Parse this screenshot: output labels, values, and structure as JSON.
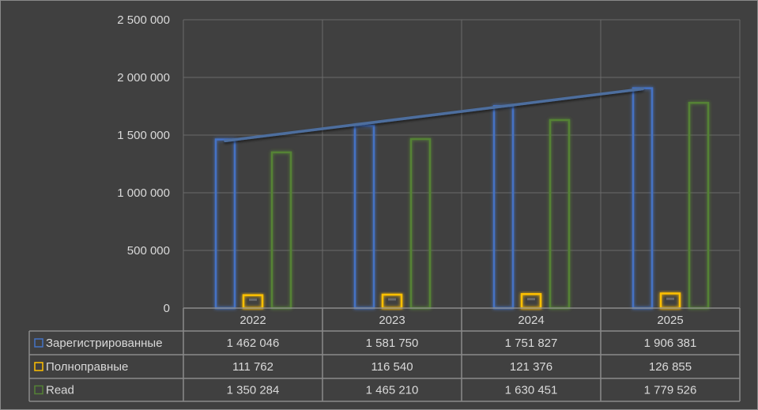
{
  "chart_data": {
    "type": "bar",
    "title": "",
    "xlabel": "",
    "ylabel": "",
    "categories": [
      "2022",
      "2023",
      "2024",
      "2025"
    ],
    "ylim": [
      0,
      2500000
    ],
    "y_ticks": [
      0,
      500000,
      1000000,
      1500000,
      2000000,
      2500000
    ],
    "y_tick_labels": [
      "0",
      "500 000",
      "1 000 000",
      "1 500 000",
      "2 000 000",
      "2 500 000"
    ],
    "grid": true,
    "legend": "data-table",
    "trendline": {
      "series": "Зарегистрированные",
      "type": "linear"
    },
    "series": [
      {
        "name": "Зарегистрированные",
        "color": "#4472c4",
        "values": [
          1462046,
          1581750,
          1751827,
          1906381
        ],
        "labels": [
          "1 462 046",
          "1 581 750",
          "1 751 827",
          "1 906 381"
        ]
      },
      {
        "name": "Полноправные",
        "color": "#ffc000",
        "values": [
          111762,
          116540,
          121376,
          126855
        ],
        "labels": [
          "111 762",
          "116 540",
          "121 376",
          "126 855"
        ]
      },
      {
        "name": "Read",
        "color": "#548235",
        "values": [
          1350284,
          1465210,
          1630451,
          1779526
        ],
        "labels": [
          "1 350 284",
          "1 465 210",
          "1 630 451",
          "1 779 526"
        ]
      }
    ]
  }
}
